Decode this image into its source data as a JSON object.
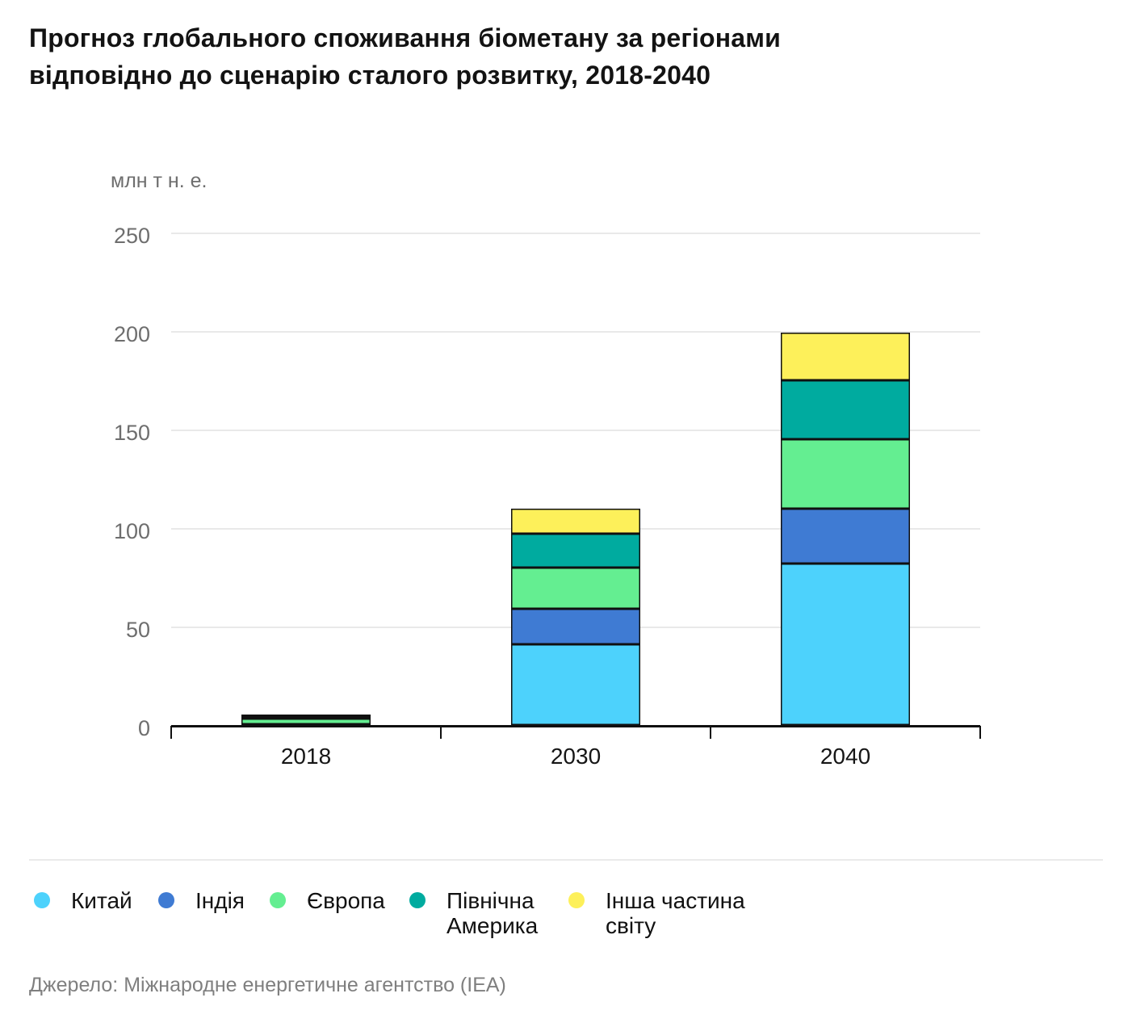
{
  "title_lines": [
    "Прогноз глобального споживання біометану за регіонами",
    "відповідно до сценарію сталого розвитку, 2018-2040"
  ],
  "chart_data": {
    "type": "bar",
    "stacked": true,
    "title": "Прогноз глобального споживання біометану за регіонами відповідно до сценарію сталого розвитку, 2018-2040",
    "unit_label": "млн т н. е.",
    "categories": [
      "2018",
      "2030",
      "2040"
    ],
    "series": [
      {
        "name": "Китай",
        "color": "#4DD2FC",
        "values": [
          0.3,
          41,
          82
        ]
      },
      {
        "name": "Індія",
        "color": "#3F7BD3",
        "values": [
          0.2,
          18,
          28
        ]
      },
      {
        "name": "Європа",
        "color": "#64EE91",
        "values": [
          2.7,
          21,
          35
        ]
      },
      {
        "name": "Північна Америка",
        "color": "#00AB9F",
        "values": [
          1.2,
          17,
          30
        ]
      },
      {
        "name": "Інша частина світу",
        "color": "#FDF05A",
        "values": [
          0.8,
          13,
          24
        ]
      }
    ],
    "totals": [
      5.2,
      110,
      199
    ],
    "ylim": [
      0,
      250
    ],
    "yticks": [
      0,
      50,
      100,
      150,
      200,
      250
    ],
    "grid": true,
    "legend_position": "bottom",
    "bar_border_color": "#101010",
    "gridline_color": "#e9e9e9",
    "axis_color": "#101010"
  },
  "source": "Джерело: Міжнародне енергетичне агентство (IEA)"
}
